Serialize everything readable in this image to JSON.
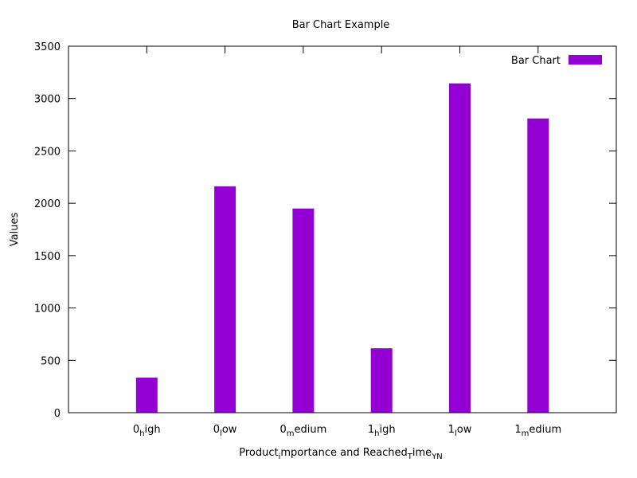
{
  "chart_data": {
    "type": "bar",
    "title": "Bar Chart Example",
    "ylabel": "Values",
    "xlabel": {
      "base": "Product",
      "sub1": "i",
      "mid": "mportance and Reached",
      "sup_sub": "T",
      "mid2": "ime",
      "sub2": "YN"
    },
    "ylim": [
      0,
      3500
    ],
    "yticks": [
      0,
      500,
      1000,
      1500,
      2000,
      2500,
      3000,
      3500
    ],
    "categories": [
      {
        "base": "0",
        "sub": "h",
        "rest": "igh"
      },
      {
        "base": "0",
        "sub": "l",
        "rest": "ow"
      },
      {
        "base": "0",
        "sub": "m",
        "rest": "edium"
      },
      {
        "base": "1",
        "sub": "h",
        "rest": "igh"
      },
      {
        "base": "1",
        "sub": "l",
        "rest": "ow"
      },
      {
        "base": "1",
        "sub": "m",
        "rest": "edium"
      }
    ],
    "series": [
      {
        "name": "Bar Chart",
        "color": "#9400d3",
        "values": [
          335,
          2162,
          1950,
          615,
          3145,
          2810
        ]
      }
    ],
    "legend": "top-right"
  }
}
